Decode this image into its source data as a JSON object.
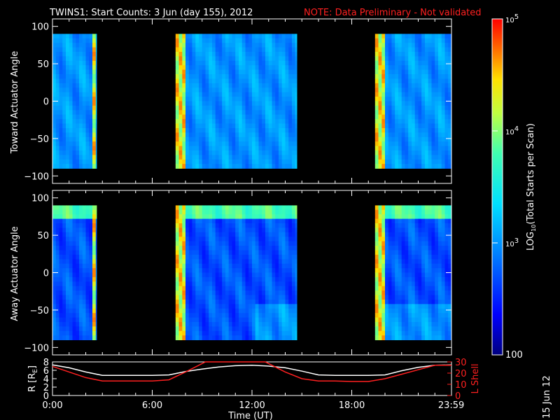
{
  "title": {
    "main": "TWINS1: Start Counts:  3 Jun (day 155), 2012",
    "note": "NOTE: Data Preliminary - Not validated"
  },
  "footer_date": "15 Jun 12",
  "colors": {
    "background": "#000000",
    "axes": "#ffffff",
    "note": "#ff2020",
    "l_shell": "#ff2020",
    "r_line": "#ffffff"
  },
  "colorbar": {
    "label": "LOG10(Total Starts per Scan)",
    "label_main": "LOG",
    "label_sub": "10",
    "label_rest": "(Total Starts per Scan)",
    "ticks": [
      {
        "value": 100,
        "label": "100"
      },
      {
        "value": 1000,
        "label": "10^3"
      },
      {
        "value": 10000,
        "label": "10^4"
      },
      {
        "value": 100000,
        "label": "10^5"
      }
    ],
    "range": [
      100,
      100000
    ],
    "scale": "log",
    "colormap": "rainbow"
  },
  "chart_data": [
    {
      "type": "heatmap",
      "name": "toward",
      "ylabel": "Toward Actuator Angle",
      "ylim": [
        -110,
        110
      ],
      "yticks": [
        100,
        50,
        0,
        -50,
        -100
      ],
      "ytick_labels": [
        "100",
        "50",
        "0",
        "−50",
        "−100"
      ],
      "xlim": [
        0,
        24
      ],
      "data_angle_range": [
        -90,
        90
      ],
      "data_intervals_hours": [
        [
          0.0,
          2.65
        ],
        [
          7.4,
          14.7
        ],
        [
          19.4,
          24.0
        ]
      ],
      "bright_bands_hours": [
        [
          2.3,
          2.6
        ],
        [
          7.4,
          8.0
        ],
        [
          19.4,
          19.8
        ]
      ],
      "typical_level": 1000
    },
    {
      "type": "heatmap",
      "name": "away",
      "ylabel": "Away Actuator Angle",
      "ylim": [
        -110,
        110
      ],
      "yticks": [
        100,
        50,
        0,
        -50,
        -100
      ],
      "ytick_labels": [
        "100",
        "50",
        "0",
        "−50",
        "−100"
      ],
      "xlim": [
        0,
        24
      ],
      "data_angle_range": [
        -90,
        90
      ],
      "data_intervals_hours": [
        [
          0.0,
          2.65
        ],
        [
          7.4,
          14.7
        ],
        [
          19.4,
          24.0
        ]
      ],
      "bright_bands_hours": [
        [
          2.3,
          2.6
        ],
        [
          7.4,
          8.0
        ],
        [
          19.4,
          19.8
        ]
      ],
      "typical_level": 500
    },
    {
      "type": "line",
      "name": "orbit",
      "ylabel": "R [RE]",
      "ylabel_main": "R [R",
      "ylabel_sub": "E",
      "ylabel_end": "]",
      "ylim": [
        0,
        8
      ],
      "yticks": [
        0,
        2,
        4,
        6,
        8
      ],
      "ytick_labels": [
        "0",
        "2",
        "4",
        "6",
        "8"
      ],
      "y2label": "L Shell",
      "y2lim": [
        0,
        30
      ],
      "y2ticks": [
        0,
        10,
        20,
        30
      ],
      "y2tick_labels": [
        "0",
        "10",
        "20",
        "30"
      ],
      "xlabel": "Time (UT)",
      "xlim": [
        0,
        24
      ],
      "xticks": [
        0,
        6,
        12,
        18,
        23.983
      ],
      "xtick_labels": [
        "0:00",
        "6:00",
        "12:00",
        "18:00",
        "23:59"
      ],
      "series": [
        {
          "axis": "left",
          "color": "#ffffff",
          "x": [
            0,
            1,
            2,
            3,
            4,
            5,
            6,
            7,
            8,
            9,
            10,
            11,
            12,
            13,
            14,
            15,
            16,
            17,
            18,
            19,
            20,
            21,
            22,
            23,
            24
          ],
          "y": [
            7.3,
            6.6,
            5.6,
            4.8,
            4.8,
            4.8,
            4.8,
            4.9,
            5.7,
            6.3,
            6.8,
            7.1,
            7.2,
            7.0,
            6.6,
            5.8,
            4.9,
            4.8,
            4.8,
            4.8,
            4.9,
            5.9,
            6.7,
            7.2,
            7.3
          ]
        },
        {
          "axis": "right",
          "color": "#ff2020",
          "x": [
            0,
            1,
            2,
            3,
            4,
            5,
            6,
            7,
            8,
            9.2,
            12.8,
            14,
            15,
            16,
            17,
            18,
            19,
            20,
            21,
            22,
            23,
            24
          ],
          "y": [
            26,
            21,
            16,
            13,
            13,
            13,
            13,
            14,
            21,
            30,
            30,
            21,
            15,
            13,
            13,
            12.5,
            12.5,
            15,
            19,
            23,
            27,
            27
          ]
        }
      ]
    }
  ]
}
